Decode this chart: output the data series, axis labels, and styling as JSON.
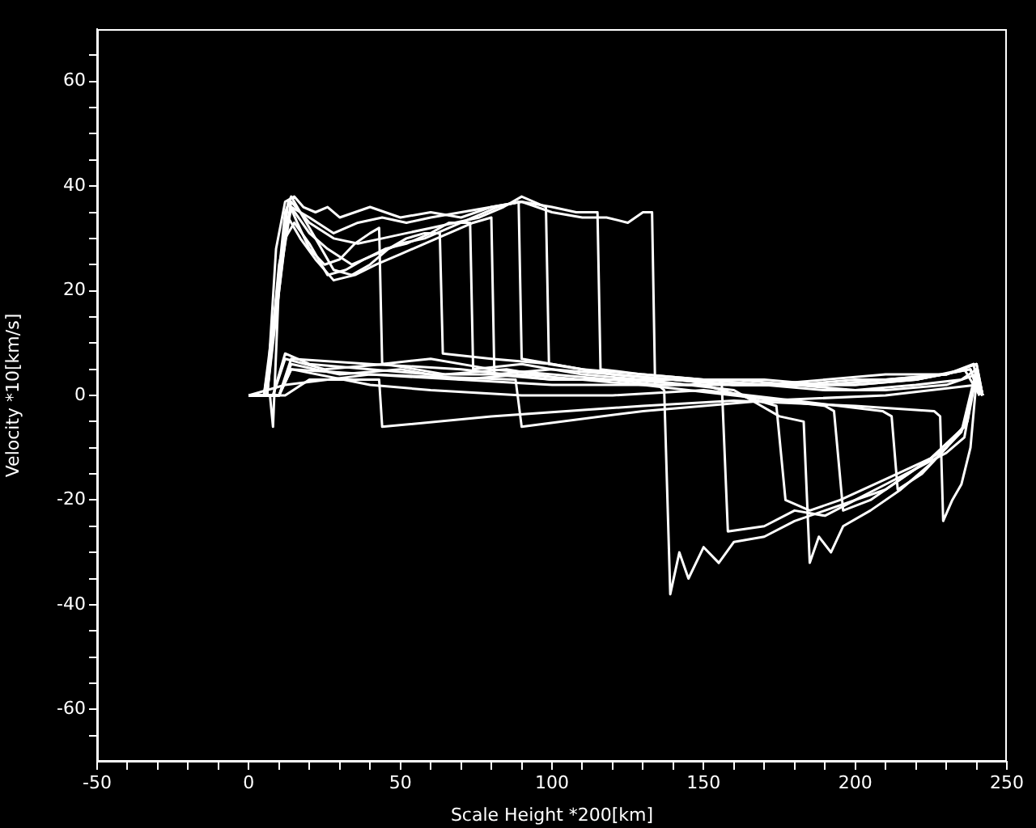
{
  "chart_data": {
    "type": "line",
    "xlabel": "Scale Height *200[km]",
    "ylabel": "Velocity *10[km/s]",
    "xlim": [
      -50,
      250
    ],
    "ylim": [
      -70,
      70
    ],
    "xticks": [
      -50,
      {
        "value": -40,
        "label": null
      },
      {
        "value": -30,
        "label": null
      },
      {
        "value": -20,
        "label": null
      },
      {
        "value": -10,
        "label": null
      },
      0,
      {
        "value": 10,
        "label": null
      },
      {
        "value": 20,
        "label": null
      },
      {
        "value": 30,
        "label": null
      },
      {
        "value": 40,
        "label": null
      },
      50,
      {
        "value": 60,
        "label": null
      },
      {
        "value": 70,
        "label": null
      },
      {
        "value": 80,
        "label": null
      },
      {
        "value": 90,
        "label": null
      },
      100,
      {
        "value": 110,
        "label": null
      },
      {
        "value": 120,
        "label": null
      },
      {
        "value": 130,
        "label": null
      },
      {
        "value": 140,
        "label": null
      },
      150,
      {
        "value": 160,
        "label": null
      },
      {
        "value": 170,
        "label": null
      },
      {
        "value": 180,
        "label": null
      },
      {
        "value": 190,
        "label": null
      },
      200,
      {
        "value": 210,
        "label": null
      },
      {
        "value": 220,
        "label": null
      },
      {
        "value": 230,
        "label": null
      },
      {
        "value": 240,
        "label": null
      },
      250
    ],
    "yticks": [
      {
        "value": -65,
        "label": null
      },
      -60,
      {
        "value": -55,
        "label": null
      },
      {
        "value": -50,
        "label": null
      },
      {
        "value": -45,
        "label": null
      },
      -40,
      {
        "value": -35,
        "label": null
      },
      {
        "value": -30,
        "label": null
      },
      {
        "value": -25,
        "label": null
      },
      -20,
      {
        "value": -15,
        "label": null
      },
      {
        "value": -10,
        "label": null
      },
      {
        "value": -5,
        "label": null
      },
      0,
      {
        "value": 5,
        "label": null
      },
      {
        "value": 10,
        "label": null
      },
      {
        "value": 15,
        "label": null
      },
      20,
      {
        "value": 25,
        "label": null
      },
      {
        "value": 30,
        "label": null
      },
      {
        "value": 35,
        "label": null
      },
      40,
      {
        "value": 45,
        "label": null
      },
      {
        "value": 50,
        "label": null
      },
      {
        "value": 55,
        "label": null
      },
      60,
      {
        "value": 65,
        "label": null
      }
    ],
    "grid": false,
    "legend": false,
    "marker": "none",
    "line_style": "solid",
    "series": [
      {
        "color": "#ffffff",
        "x": [
          0,
          4,
          7,
          8,
          10,
          13,
          16,
          20,
          25,
          30,
          35,
          40,
          43,
          44,
          60,
          80,
          100,
          120,
          140,
          160,
          180,
          200,
          220,
          235,
          240,
          242
        ],
        "values": [
          0,
          0,
          0,
          -6,
          22,
          37,
          33,
          28,
          25,
          26,
          29,
          31,
          32,
          6,
          7,
          5,
          4,
          3,
          3,
          2,
          2,
          1,
          2,
          3,
          5,
          0
        ]
      },
      {
        "color": "#ffffff",
        "x": [
          0,
          5,
          9,
          12,
          14,
          18,
          22,
          28,
          34,
          40,
          46,
          52,
          58,
          63,
          64,
          80,
          100,
          120,
          140,
          160,
          180,
          200,
          220,
          238,
          241
        ],
        "values": [
          0,
          0,
          18,
          35,
          38,
          34,
          30,
          24,
          23,
          25,
          28,
          30,
          31,
          31,
          8,
          7,
          6,
          4,
          3,
          3,
          2,
          2,
          3,
          5,
          0
        ]
      },
      {
        "color": "#ffffff",
        "x": [
          0,
          5,
          9,
          12,
          15,
          20,
          26,
          32,
          38,
          45,
          52,
          60,
          66,
          73,
          74,
          90,
          110,
          130,
          150,
          170,
          190,
          210,
          230,
          239,
          241
        ],
        "values": [
          0,
          0,
          15,
          30,
          33,
          29,
          23,
          24,
          26,
          28,
          29,
          31,
          33,
          33,
          5,
          6,
          4,
          3,
          3,
          2,
          3,
          4,
          4,
          6,
          0
        ]
      },
      {
        "color": "#ffffff",
        "x": [
          0,
          6,
          10,
          13,
          17,
          22,
          28,
          35,
          42,
          50,
          58,
          66,
          74,
          80,
          81,
          100,
          120,
          140,
          160,
          180,
          200,
          220,
          236,
          241
        ],
        "values": [
          0,
          0,
          20,
          34,
          30,
          26,
          22,
          23,
          25,
          27,
          29,
          31,
          33,
          34,
          4,
          5,
          4,
          3,
          2,
          2,
          2,
          3,
          5,
          0
        ]
      },
      {
        "color": "#ffffff",
        "x": [
          0,
          6,
          10,
          14,
          20,
          26,
          34,
          42,
          50,
          58,
          66,
          74,
          82,
          89,
          90,
          110,
          130,
          150,
          170,
          190,
          210,
          230,
          240,
          242
        ],
        "values": [
          0,
          0,
          22,
          36,
          31,
          28,
          25,
          27,
          29,
          30,
          32,
          34,
          36,
          37,
          7,
          5,
          4,
          3,
          2,
          2,
          3,
          4,
          6,
          0
        ]
      },
      {
        "color": "#ffffff",
        "x": [
          0,
          6,
          10,
          14,
          20,
          28,
          36,
          44,
          52,
          60,
          68,
          76,
          84,
          90,
          98,
          99,
          120,
          140,
          160,
          180,
          200,
          220,
          238,
          241
        ],
        "values": [
          0,
          0,
          24,
          37,
          33,
          30,
          29,
          30,
          31,
          32,
          33,
          34,
          36,
          38,
          36,
          6,
          4,
          3,
          2,
          2,
          3,
          3,
          5,
          0
        ]
      },
      {
        "color": "#ffffff",
        "x": [
          0,
          6,
          10,
          14,
          20,
          28,
          36,
          44,
          52,
          60,
          70,
          80,
          90,
          100,
          108,
          115,
          116,
          130,
          150,
          170,
          190,
          210,
          230,
          240,
          242
        ],
        "values": [
          0,
          0,
          25,
          36,
          34,
          31,
          33,
          34,
          33,
          34,
          35,
          36,
          37,
          36,
          35,
          35,
          5,
          4,
          3,
          3,
          2,
          3,
          4,
          6,
          0
        ]
      },
      {
        "color": "#ffffff",
        "x": [
          0,
          6,
          9,
          12,
          15,
          18,
          22,
          26,
          30,
          35,
          40,
          50,
          60,
          70,
          80,
          90,
          100,
          110,
          118,
          125,
          130,
          133,
          134,
          150,
          170,
          190,
          210,
          230,
          240,
          242
        ],
        "values": [
          0,
          0,
          28,
          37,
          38,
          36,
          35,
          36,
          34,
          35,
          36,
          34,
          35,
          34,
          36,
          37,
          35,
          34,
          34,
          33,
          35,
          35,
          2,
          2,
          2,
          1,
          1,
          2,
          4,
          0
        ]
      },
      {
        "color": "#ffffff",
        "x": [
          0,
          8,
          12,
          20,
          40,
          60,
          80,
          100,
          120,
          135,
          137,
          139,
          142,
          145,
          150,
          155,
          160,
          170,
          180,
          190,
          200,
          210,
          220,
          230,
          236,
          240,
          242
        ],
        "values": [
          0,
          0,
          8,
          6,
          5,
          4,
          4,
          3,
          3,
          2,
          1,
          -38,
          -30,
          -35,
          -29,
          -32,
          -28,
          -27,
          -24,
          -22,
          -20,
          -17,
          -14,
          -10,
          -6,
          4,
          0
        ]
      },
      {
        "color": "#ffffff",
        "x": [
          0,
          8,
          12,
          25,
          45,
          65,
          85,
          105,
          125,
          145,
          155,
          156,
          158,
          170,
          180,
          190,
          200,
          210,
          220,
          230,
          236,
          240,
          242
        ],
        "values": [
          0,
          0,
          7,
          5,
          6,
          4,
          5,
          3,
          3,
          2,
          3,
          2,
          -26,
          -25,
          -22,
          -23,
          -20,
          -18,
          -14,
          -11,
          -8,
          5,
          0
        ]
      },
      {
        "color": "#ffffff",
        "x": [
          0,
          10,
          14,
          30,
          50,
          70,
          90,
          110,
          130,
          150,
          174,
          177,
          185,
          195,
          210,
          225,
          236,
          240,
          242
        ],
        "values": [
          0,
          0,
          6,
          4,
          5,
          3,
          4,
          3,
          2,
          2,
          -2,
          -20,
          -22,
          -20,
          -16,
          -12,
          -6,
          5,
          0
        ]
      },
      {
        "color": "#ffffff",
        "x": [
          0,
          10,
          14,
          40,
          70,
          100,
          130,
          160,
          175,
          183,
          185,
          188,
          192,
          196,
          205,
          215,
          225,
          235,
          240,
          242
        ],
        "values": [
          0,
          0,
          7,
          6,
          5,
          3,
          3,
          1,
          -4,
          -5,
          -32,
          -27,
          -30,
          -25,
          -22,
          -18,
          -13,
          -7,
          5,
          0
        ]
      },
      {
        "color": "#ffffff",
        "x": [
          0,
          10,
          14,
          40,
          70,
          100,
          130,
          160,
          190,
          193,
          196,
          205,
          215,
          225,
          236,
          240,
          242
        ],
        "values": [
          0,
          0,
          5,
          4,
          3,
          2,
          2,
          0,
          -2,
          -3,
          -22,
          -20,
          -16,
          -12,
          -6,
          4,
          0
        ]
      },
      {
        "color": "#ffffff",
        "x": [
          0,
          10,
          14,
          40,
          60,
          90,
          120,
          150,
          180,
          209,
          212,
          214,
          222,
          230,
          237,
          240,
          242
        ],
        "values": [
          0,
          0,
          5,
          2,
          1,
          0,
          0,
          1,
          -1,
          -3,
          -4,
          -18,
          -15,
          -10,
          -5,
          4,
          0
        ]
      },
      {
        "color": "#ffffff",
        "x": [
          0,
          12,
          20,
          43,
          44,
          80,
          130,
          160,
          200,
          226,
          228,
          229,
          232,
          235,
          238,
          240,
          242
        ],
        "values": [
          0,
          0,
          3,
          3,
          -6,
          -4,
          -2,
          -1,
          -2,
          -3,
          -4,
          -24,
          -20,
          -17,
          -10,
          3,
          0
        ]
      },
      {
        "color": "#ffffff",
        "x": [
          0,
          12,
          40,
          88,
          90,
          130,
          170,
          210,
          240,
          242
        ],
        "values": [
          0,
          2,
          4,
          3,
          -6,
          -3,
          -1,
          0,
          2,
          0
        ]
      }
    ]
  }
}
